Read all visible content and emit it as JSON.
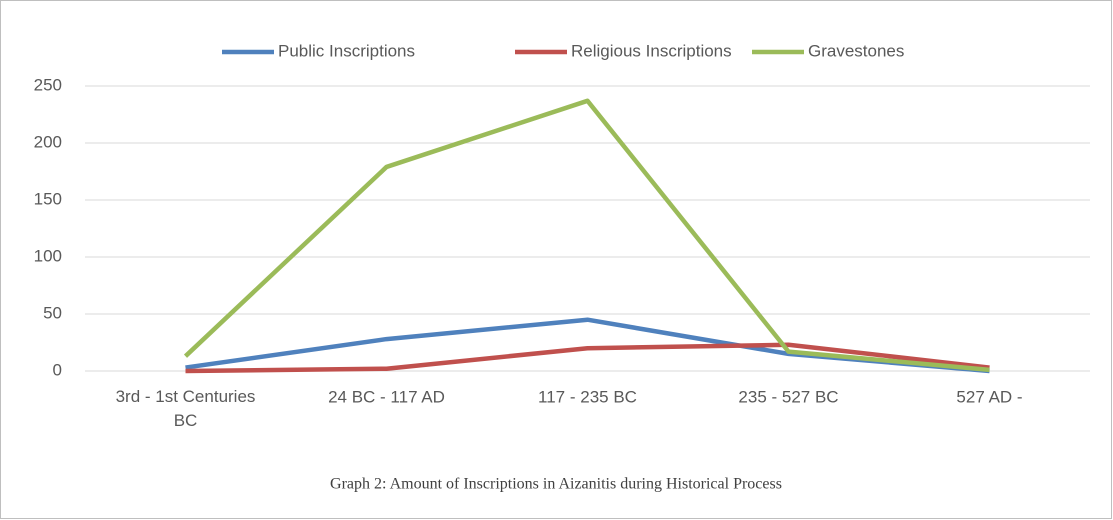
{
  "chart_data": {
    "type": "line",
    "caption": "Graph 2: Amount of Inscriptions in Aizanitis during Historical Process",
    "categories": [
      "3rd - 1st Centuries BC",
      "24 BC - 117 AD",
      "117 -  235 BC",
      "235 - 527 BC",
      "527 AD -"
    ],
    "series": [
      {
        "name": "Public Inscriptions",
        "color": "#4f81bd",
        "values": [
          3,
          28,
          45,
          15,
          0
        ]
      },
      {
        "name": "Religious Inscriptions",
        "color": "#c0504d",
        "values": [
          0,
          2,
          20,
          23,
          3
        ]
      },
      {
        "name": "Gravestones",
        "color": "#9bbb59",
        "values": [
          13,
          179,
          237,
          17,
          1
        ]
      }
    ],
    "ylim": [
      0,
      250
    ],
    "yticks": [
      0,
      50,
      100,
      150,
      200,
      250
    ],
    "grid": true,
    "legend": "top"
  }
}
